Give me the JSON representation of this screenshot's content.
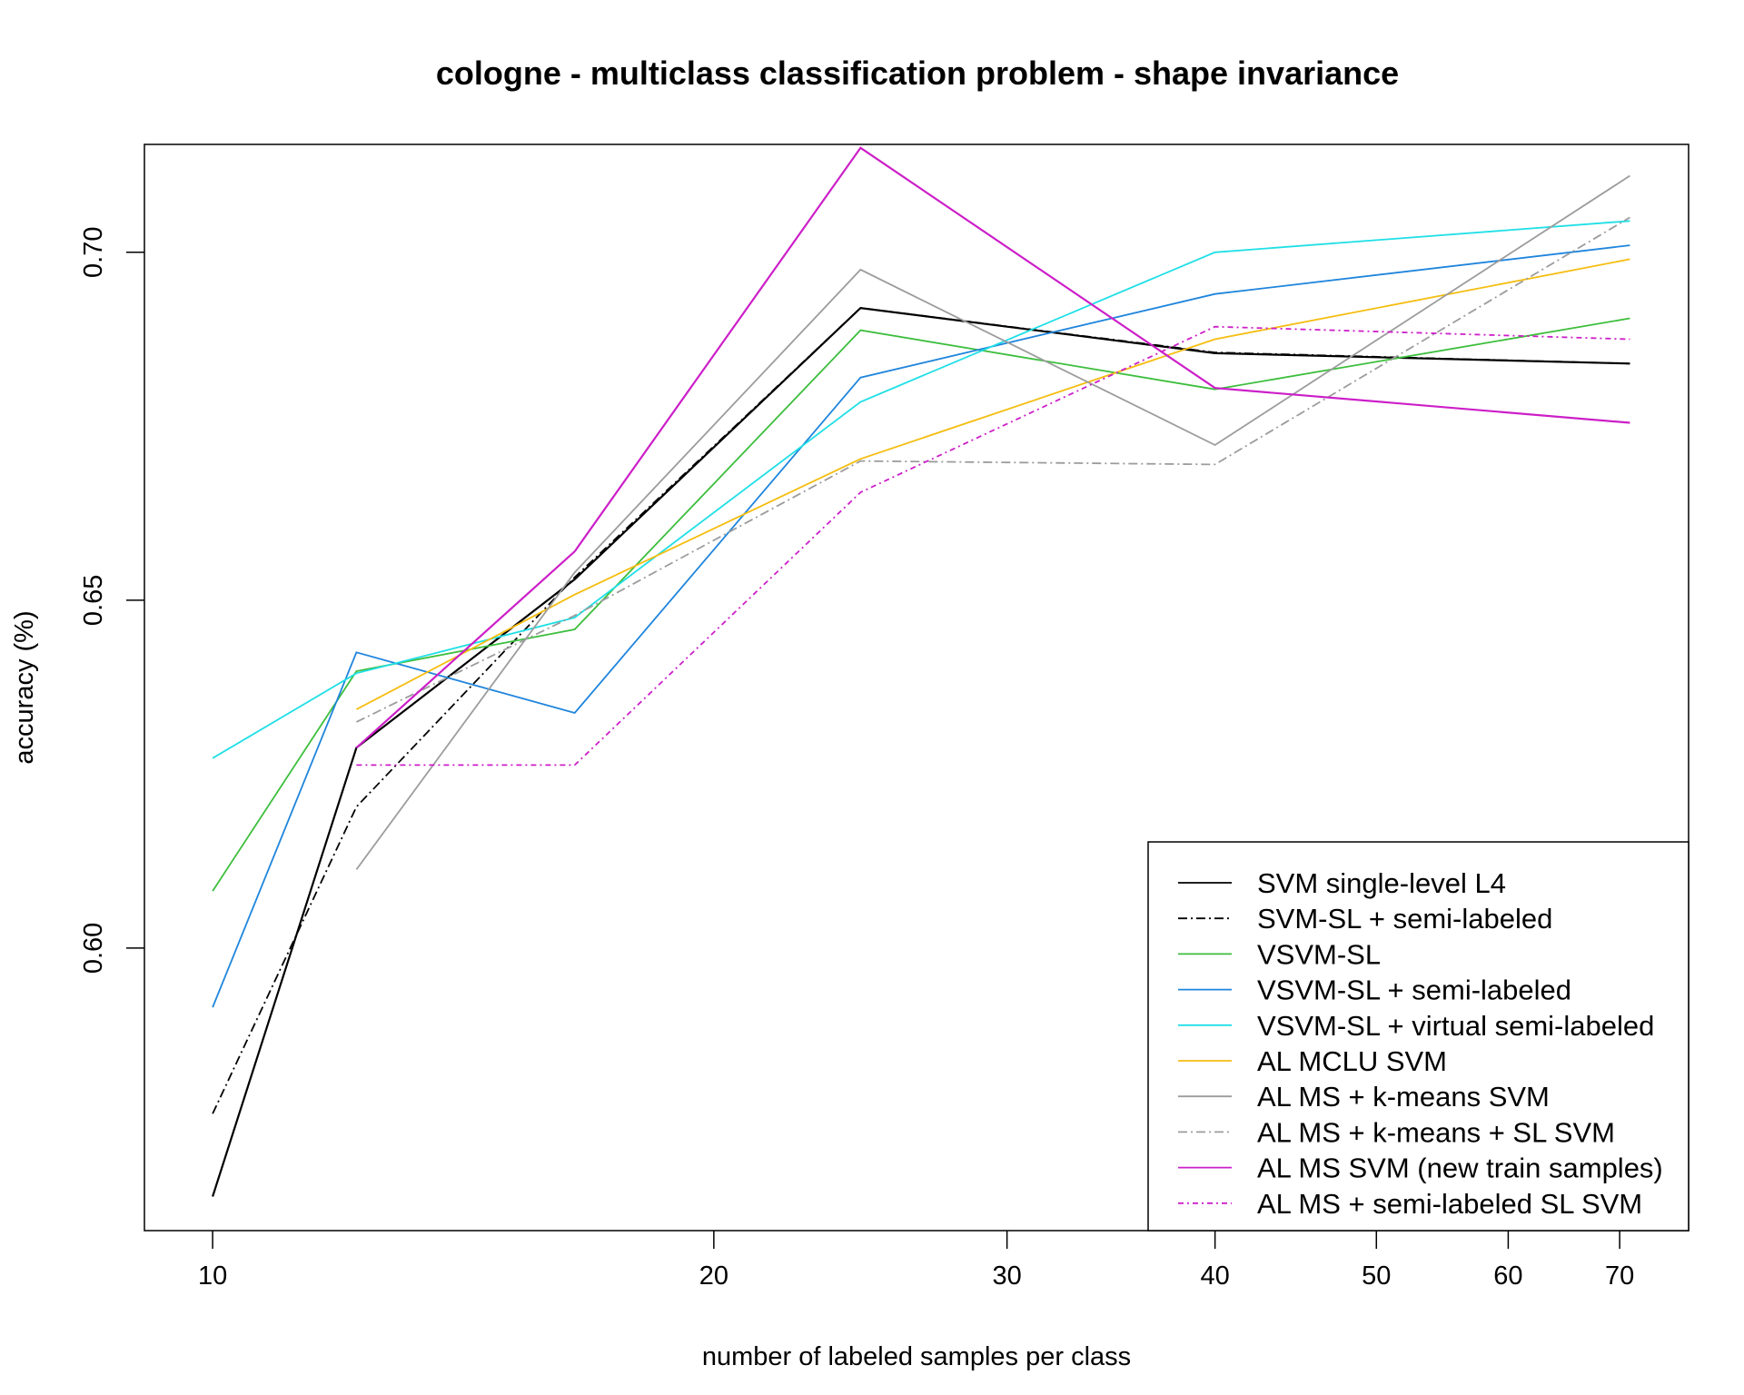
{
  "chart_data": {
    "type": "line",
    "title": "cologne - multiclass classification problem - shape invariance",
    "xlabel": "number of labeled samples per class",
    "ylabel": "accuracy (%)",
    "x_scale": "log",
    "xlim": [
      9.1,
      77
    ],
    "ylim": [
      0.5594,
      0.7155
    ],
    "x_ticks": [
      10,
      20,
      30,
      40,
      50,
      60,
      70
    ],
    "y_ticks": [
      0.6,
      0.65,
      0.7
    ],
    "y_tick_labels": [
      "0.60",
      "0.65",
      "0.70"
    ],
    "legend_position": "bottom-right",
    "x": [
      10,
      12.2,
      16.5,
      24.5,
      40,
      71
    ],
    "series": [
      {
        "name": "SVM single-level L4",
        "color": "#000000",
        "dash": "",
        "values": [
          0.5643,
          0.6288,
          0.653,
          0.692,
          0.6855,
          0.684
        ]
      },
      {
        "name": "SVM-SL + semi-labeled",
        "color": "#000000",
        "dash": "10,4,2,4",
        "values": [
          0.5762,
          0.6203,
          0.6533,
          0.692,
          0.6856,
          0.684
        ]
      },
      {
        "name": "VSVM-SL",
        "color": "#3dbe3d",
        "dash": "",
        "values": [
          0.6082,
          0.6398,
          0.6458,
          0.6888,
          0.6803,
          0.6905
        ]
      },
      {
        "name": "VSVM-SL + semi-labeled",
        "color": "#1f85dc",
        "dash": "",
        "values": [
          0.5915,
          0.6425,
          0.6338,
          0.682,
          0.694,
          0.701
        ]
      },
      {
        "name": "VSVM-SL + virtual semi-labeled",
        "color": "#1fdfe6",
        "dash": "",
        "values": [
          0.6273,
          0.6395,
          0.6475,
          0.6785,
          0.7,
          0.7045
        ]
      },
      {
        "name": "AL MCLU SVM",
        "color": "#f5bd10",
        "dash": "",
        "values": null,
        "values_list": [
          0.6343,
          0.6508,
          0.6703,
          0.6875,
          0.699
        ]
      },
      {
        "name": "AL MS + k-means SVM",
        "color": "#9c9c9c",
        "dash": "",
        "values": [
          null,
          0.6113,
          0.654,
          0.6975,
          0.6723,
          0.711
        ]
      },
      {
        "name": "AL MS + k-means + SL SVM",
        "color": "#9c9c9c",
        "dash": "10,4,2,4",
        "values": [
          null,
          0.6325,
          0.6478,
          0.67,
          0.6695,
          0.705
        ]
      },
      {
        "name": "AL MS SVM (new train samples)",
        "color": "#cc1fc8",
        "dash": "",
        "values": [
          null,
          0.6288,
          0.657,
          0.715,
          0.6805,
          0.6755
        ]
      },
      {
        "name": "AL MS + semi-labeled SL SVM",
        "color": "#cc1fc8",
        "dash": "6,4,2,4",
        "values": [
          null,
          0.6263,
          0.6263,
          0.6655,
          0.6893,
          0.6875
        ]
      }
    ],
    "mclu_x": [
      12.2,
      16.5,
      24.5,
      40,
      71
    ]
  }
}
